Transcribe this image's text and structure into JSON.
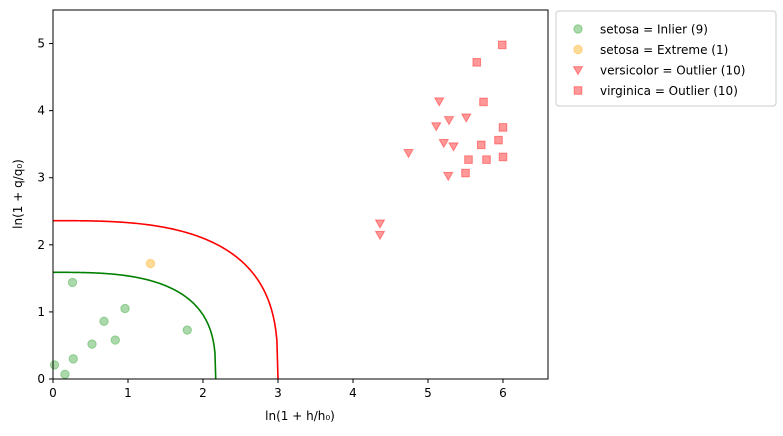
{
  "chart_data": {
    "type": "scatter",
    "xlabel": "ln(1 + h/h₀)",
    "ylabel": "ln(1 + q/q₀)",
    "xlim": [
      0,
      6.6
    ],
    "ylim": [
      0,
      5.5
    ],
    "xticks": [
      0,
      1,
      2,
      3,
      4,
      5,
      6
    ],
    "yticks": [
      0,
      1,
      2,
      3,
      4,
      5
    ],
    "grid": false,
    "legend_position": "outside top-right",
    "series": [
      {
        "name": "setosa = Inlier (9)",
        "marker": "circle",
        "color": "#2ca02c",
        "points": [
          [
            0.02,
            0.21
          ],
          [
            0.16,
            0.07
          ],
          [
            0.27,
            0.3
          ],
          [
            0.26,
            1.44
          ],
          [
            0.52,
            0.52
          ],
          [
            0.68,
            0.86
          ],
          [
            0.83,
            0.58
          ],
          [
            0.96,
            1.05
          ],
          [
            1.79,
            0.73
          ]
        ]
      },
      {
        "name": "setosa = Extreme (1)",
        "marker": "circle",
        "color": "#ffa500",
        "points": [
          [
            1.3,
            1.72
          ]
        ]
      },
      {
        "name": "versicolor = Outlier (10)",
        "marker": "triangle-down",
        "color": "#ff0000",
        "points": [
          [
            4.36,
            2.32
          ],
          [
            4.36,
            2.15
          ],
          [
            4.74,
            3.37
          ],
          [
            5.11,
            3.77
          ],
          [
            5.15,
            4.14
          ],
          [
            5.21,
            3.52
          ],
          [
            5.27,
            3.03
          ],
          [
            5.28,
            3.86
          ],
          [
            5.34,
            3.47
          ],
          [
            5.51,
            3.9
          ]
        ]
      },
      {
        "name": "virginica = Outlier (10)",
        "marker": "square",
        "color": "#ff0000",
        "points": [
          [
            5.5,
            3.07
          ],
          [
            5.54,
            3.27
          ],
          [
            5.65,
            4.72
          ],
          [
            5.71,
            3.49
          ],
          [
            5.74,
            4.13
          ],
          [
            5.78,
            3.27
          ],
          [
            5.94,
            3.56
          ],
          [
            5.99,
            4.98
          ],
          [
            6.0,
            3.75
          ],
          [
            6.0,
            3.31
          ]
        ]
      }
    ],
    "boundaries": [
      {
        "color": "#008000",
        "x_intercept": 2.17,
        "y_intercept": 1.59,
        "exponent": 3
      },
      {
        "color": "#ff0000",
        "x_intercept": 3.0,
        "y_intercept": 2.36,
        "exponent": 3
      }
    ]
  }
}
